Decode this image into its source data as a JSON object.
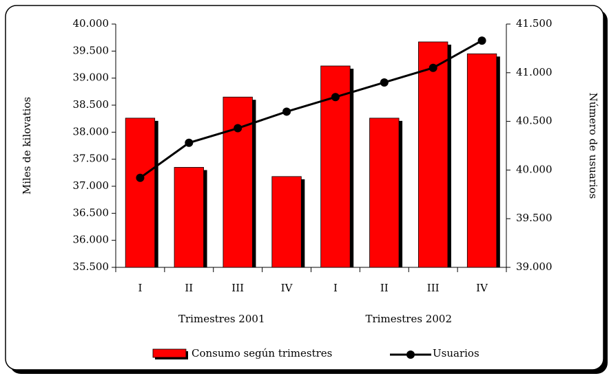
{
  "chart_data": {
    "type": "bar_line",
    "categories": [
      "I",
      "II",
      "III",
      "IV",
      "I",
      "II",
      "III",
      "IV"
    ],
    "group_labels": [
      "Trimestres 2001",
      "Trimestres 2002"
    ],
    "ylabel": "Miles de kilovatios",
    "y2label": "Número de usuarios",
    "series": [
      {
        "name": "Consumo según trimestres",
        "type": "bar",
        "color": "#ff0000",
        "values": [
          38260,
          37350,
          38650,
          37180,
          39225,
          38260,
          39670,
          39450
        ]
      },
      {
        "name": "Usuarios",
        "type": "line",
        "color": "#000000",
        "axis": "y2",
        "values": [
          39920,
          40280,
          40430,
          40600,
          40750,
          40900,
          41050,
          41330
        ]
      }
    ],
    "ylim": [
      35500,
      40000
    ],
    "yticks": [
      {
        "value": 35500,
        "label": "35.500"
      },
      {
        "value": 36000,
        "label": "36.000"
      },
      {
        "value": 36500,
        "label": "36.500"
      },
      {
        "value": 37000,
        "label": "37.000"
      },
      {
        "value": 37500,
        "label": "37.500"
      },
      {
        "value": 38000,
        "label": "38.000"
      },
      {
        "value": 38500,
        "label": "38.500"
      },
      {
        "value": 39000,
        "label": "39.000"
      },
      {
        "value": 39500,
        "label": "39.500"
      },
      {
        "value": 40000,
        "label": "40.000"
      }
    ],
    "y2lim": [
      39000,
      41500
    ],
    "y2ticks": [
      {
        "value": 39000,
        "label": "39.000"
      },
      {
        "value": 39500,
        "label": "39.500"
      },
      {
        "value": 40000,
        "label": "40.000"
      },
      {
        "value": 40500,
        "label": "40.500"
      },
      {
        "value": 41000,
        "label": "41.000"
      },
      {
        "value": 41500,
        "label": "41.500"
      }
    ],
    "legend": "bottom"
  }
}
